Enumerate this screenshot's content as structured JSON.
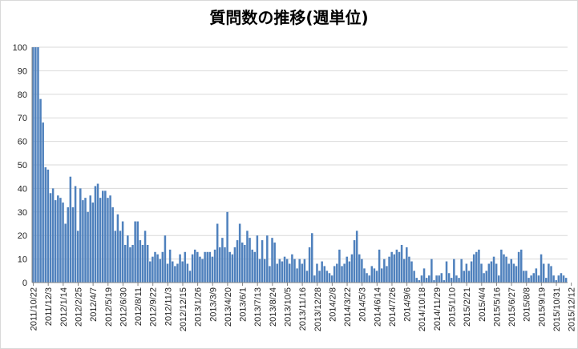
{
  "chart_data": {
    "type": "bar",
    "title": "質問数の推移(週単位)",
    "xlabel": "",
    "ylabel": "",
    "ylim": [
      0,
      100
    ],
    "yticks": [
      0,
      10,
      20,
      30,
      40,
      50,
      60,
      70,
      80,
      90,
      100
    ],
    "grid": true,
    "legend": "none",
    "bar_color": "#4f81bd",
    "x_tick_labels": [
      "2011/10/22",
      "2011/12/3",
      "2012/1/14",
      "2012/2/25",
      "2012/4/7",
      "2012/5/19",
      "2012/6/30",
      "2012/8/11",
      "2012/9/22",
      "2012/11/3",
      "2012/12/15",
      "2013/1/26",
      "2013/3/9",
      "2013/4/20",
      "2013/6/1",
      "2013/7/13",
      "2013/8/24",
      "2013/10/5",
      "2013/11/16",
      "2013/12/28",
      "2014/2/8",
      "2014/3/22",
      "2014/5/3",
      "2014/6/14",
      "2014/7/26",
      "2014/9/6",
      "2014/10/18",
      "2014/11/29",
      "2015/1/10",
      "2015/2/21",
      "2015/4/4",
      "2015/5/16",
      "2015/6/27",
      "2015/8/8",
      "2015/9/19",
      "2015/10/31",
      "2015/12/12"
    ],
    "values": [
      100,
      100,
      100,
      78,
      68,
      49,
      48,
      38,
      40,
      35,
      37,
      36,
      34,
      25,
      32,
      45,
      32,
      41,
      22,
      40,
      35,
      36,
      30,
      37,
      34,
      41,
      42,
      36,
      39,
      39,
      36,
      37,
      32,
      22,
      29,
      22,
      26,
      16,
      20,
      15,
      16,
      26,
      26,
      18,
      16,
      22,
      16,
      9,
      11,
      13,
      12,
      10,
      13,
      20,
      8,
      14,
      9,
      7,
      8,
      12,
      9,
      13,
      8,
      5,
      12,
      14,
      13,
      11,
      10,
      13,
      13,
      13,
      11,
      14,
      25,
      15,
      19,
      15,
      30,
      13,
      12,
      15,
      18,
      25,
      17,
      16,
      22,
      19,
      14,
      13,
      20,
      10,
      18,
      10,
      20,
      7,
      19,
      17,
      8,
      10,
      9,
      11,
      10,
      8,
      12,
      10,
      6,
      10,
      8,
      10,
      5,
      15,
      21,
      3,
      8,
      5,
      9,
      7,
      5,
      4,
      3,
      7,
      8,
      14,
      7,
      8,
      11,
      9,
      12,
      18,
      22,
      12,
      10,
      6,
      4,
      3,
      7,
      6,
      5,
      14,
      6,
      10,
      7,
      11,
      13,
      12,
      14,
      13,
      16,
      10,
      15,
      11,
      9,
      5,
      2,
      1,
      3,
      6,
      2,
      3,
      10,
      1,
      3,
      3,
      4,
      1,
      9,
      4,
      2,
      10,
      3,
      2,
      10,
      5,
      8,
      5,
      9,
      12,
      13,
      14,
      8,
      4,
      5,
      8,
      9,
      11,
      8,
      3,
      14,
      12,
      11,
      8,
      10,
      8,
      7,
      13,
      14,
      5,
      5,
      2,
      3,
      4,
      6,
      3,
      12,
      8,
      2,
      8,
      7,
      3,
      1,
      3,
      4,
      3,
      2
    ]
  }
}
